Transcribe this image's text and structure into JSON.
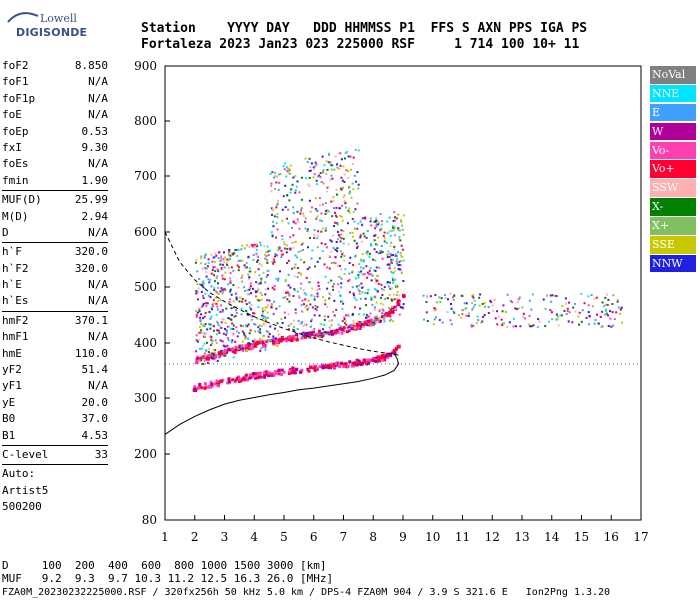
{
  "logo": {
    "line1": "Lowell",
    "line2": "DIGISONDE"
  },
  "header": {
    "labels": "Station    YYYY DAY   DDD HHMMSS P1  FFS S AXN PPS IGA PS",
    "values": "Fortaleza 2023 Jan23 023 225000 RSF     1 714 100 10+ 11"
  },
  "params": {
    "group1": [
      {
        "name": "foF2",
        "value": "8.850"
      },
      {
        "name": "foF1",
        "value": "N/A"
      },
      {
        "name": "foF1p",
        "value": "N/A"
      },
      {
        "name": "foE",
        "value": "N/A"
      },
      {
        "name": "foEp",
        "value": "0.53"
      },
      {
        "name": "fxI",
        "value": "9.30"
      },
      {
        "name": "foEs",
        "value": "N/A"
      },
      {
        "name": "fmin",
        "value": "1.90"
      }
    ],
    "group2": [
      {
        "name": "MUF(D)",
        "value": "25.99"
      },
      {
        "name": "M(D)",
        "value": "2.94"
      },
      {
        "name": "D",
        "value": "N/A"
      }
    ],
    "group3": [
      {
        "name": "h`F",
        "value": "320.0"
      },
      {
        "name": "h`F2",
        "value": "320.0"
      },
      {
        "name": "h`E",
        "value": "N/A"
      },
      {
        "name": "h`Es",
        "value": "N/A"
      }
    ],
    "group4": [
      {
        "name": "hmF2",
        "value": "370.1"
      },
      {
        "name": "hmF1",
        "value": "N/A"
      },
      {
        "name": "hmE",
        "value": "110.0"
      },
      {
        "name": "yF2",
        "value": "51.4"
      },
      {
        "name": "yF1",
        "value": "N/A"
      },
      {
        "name": "yE",
        "value": "20.0"
      },
      {
        "name": "B0",
        "value": "37.0"
      },
      {
        "name": "B1",
        "value": "4.53"
      }
    ],
    "group5": [
      {
        "name": "C-level",
        "value": "33"
      }
    ],
    "auto": [
      "Auto:",
      "Artist5",
      "500200"
    ]
  },
  "footer": {
    "d_row": "D     100  200  400  600  800 1000 1500 3000 [km]",
    "muf_row": "MUF   9.2  9.3  9.7 10.3 11.2 12.5 16.3 26.0 [MHz]",
    "file_row": "FZA0M_20230232225000.RSF / 320fx256h 50 kHz 5.0 km / DPS-4 FZA0M 904 / 3.9 S 321.6 E   Ion2Png 1.3.20"
  },
  "legend": [
    {
      "label": "NoVal",
      "color": "#808080"
    },
    {
      "label": "NNE",
      "color": "#00e5ff"
    },
    {
      "label": "E",
      "color": "#3fa0ff"
    },
    {
      "label": "W",
      "color": "#b0009a"
    },
    {
      "label": "Vo-",
      "color": "#ff3fb0"
    },
    {
      "label": "Vo+",
      "color": "#ff0030"
    },
    {
      "label": "SSW",
      "color": "#ffb0b0"
    },
    {
      "label": "X-",
      "color": "#008000"
    },
    {
      "label": "X+",
      "color": "#80c060"
    },
    {
      "label": "SSE",
      "color": "#c8c800"
    },
    {
      "label": "NNW",
      "color": "#2020e0"
    }
  ],
  "chart_data": {
    "type": "scatter",
    "x_ticks": [
      "1",
      "2",
      "3",
      "4",
      "5",
      "6",
      "7",
      "8",
      "9",
      "10",
      "11",
      "12",
      "13",
      "14",
      "15",
      "16",
      "17"
    ],
    "y_ticks": [
      "80",
      "200",
      "300",
      "400",
      "500",
      "600",
      "700",
      "800",
      "900"
    ],
    "xlim": [
      1,
      17
    ],
    "y_scale": "nonlinear",
    "grid": false,
    "traces": [
      {
        "f": [
          1.9,
          2.2,
          2.6,
          3.0,
          3.5,
          4.0,
          4.5,
          5.0,
          5.5,
          6.0,
          6.5,
          7.0,
          7.5,
          8.0,
          8.3,
          8.6,
          8.85
        ],
        "h": [
          320,
          324,
          328,
          333,
          338,
          343,
          347,
          351,
          354,
          357,
          360,
          364,
          367,
          372,
          376,
          385,
          395
        ]
      },
      {
        "f": [
          2.0,
          2.5,
          3.0,
          3.5,
          4.0,
          4.5,
          5.0,
          5.5,
          6.0,
          6.5,
          7.0,
          7.5,
          8.0,
          8.4,
          8.7,
          9.0
        ],
        "h": [
          372,
          378,
          386,
          393,
          399,
          404,
          410,
          414,
          418,
          422,
          426,
          433,
          441,
          452,
          466,
          490
        ]
      }
    ],
    "true_height_profile": {
      "f": [
        1.0,
        1.5,
        2.0,
        2.5,
        3.0,
        3.5,
        4.0,
        4.5,
        5.0,
        5.5,
        6.0,
        6.5,
        7.0,
        7.5,
        8.0,
        8.4,
        8.7,
        8.85,
        8.8,
        8.7
      ],
      "h": [
        235,
        253,
        267,
        279,
        289,
        296,
        301,
        306,
        310,
        315,
        318,
        322,
        326,
        330,
        336,
        342,
        350,
        362,
        372,
        380
      ]
    },
    "upper_boundary": {
      "f": [
        1.0,
        1.5,
        2.0,
        2.5,
        3.0,
        3.5,
        4.0,
        4.5,
        5.0,
        5.5,
        6.0,
        6.5,
        7.0,
        7.5,
        8.0,
        8.5,
        8.85
      ],
      "h": [
        600,
        545,
        513,
        490,
        474,
        460,
        447,
        436,
        426,
        417,
        409,
        402,
        396,
        390,
        385,
        381,
        378
      ]
    }
  }
}
